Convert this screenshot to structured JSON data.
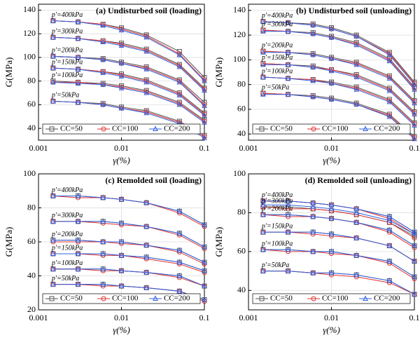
{
  "chart_data": [
    {
      "type": "line",
      "title": "(a) Undisturbed soil (loading)",
      "xlabel": "γ(%)",
      "ylabel": "G(MPa)",
      "xscale": "log",
      "xlim": [
        0.001,
        0.1
      ],
      "xticks": [
        0.001,
        0.01,
        0.1
      ],
      "ylim": [
        30,
        145
      ],
      "yticks": [
        40,
        60,
        80,
        100,
        120,
        140
      ],
      "grid": true,
      "x": [
        0.0015,
        0.003,
        0.006,
        0.01,
        0.02,
        0.05,
        0.1
      ],
      "groups": [
        "p'=400kPa",
        "p'=300kPa",
        "p'=200kPa",
        "p'=150kPa",
        "p'=100kPa",
        "p'=50kPa"
      ],
      "series": [
        {
          "name": "CC=50",
          "color": "#555555",
          "marker": "square",
          "values": [
            [
              131,
              130,
              128,
              125,
              119,
              105,
              83
            ],
            [
              117,
              116,
              114,
              112,
              107,
              94,
              74
            ],
            [
              101,
              100,
              99,
              96,
              92,
              81,
              62
            ],
            [
              91,
              90,
              88,
              86,
              81,
              70,
              53
            ],
            [
              80,
              79,
              78,
              76,
              72,
              62,
              47
            ],
            [
              63,
              62,
              61,
              58,
              55,
              46,
              34
            ]
          ]
        },
        {
          "name": "CC=100",
          "color": "#e03030",
          "marker": "circle",
          "values": [
            [
              131,
              130,
              128,
              124,
              118,
              103,
              81
            ],
            [
              117,
              116,
              114,
              111,
              106,
              93,
              73
            ],
            [
              101,
              100,
              98,
              95,
              91,
              80,
              60
            ],
            [
              91,
              90,
              88,
              85,
              80,
              69,
              52
            ],
            [
              79,
              79,
              77,
              75,
              71,
              61,
              46
            ],
            [
              63,
              62,
              60,
              57,
              54,
              45,
              33
            ]
          ]
        },
        {
          "name": "CC=200",
          "color": "#3060e0",
          "marker": "triangle",
          "values": [
            [
              131,
              130,
              127,
              123,
              117,
              102,
              80
            ],
            [
              117,
              116,
              113,
              110,
              105,
              92,
              72
            ],
            [
              101,
              100,
              98,
              95,
              90,
              79,
              59
            ],
            [
              91,
              90,
              87,
              84,
              79,
              68,
              51
            ],
            [
              79,
              78,
              77,
              74,
              70,
              60,
              45
            ],
            [
              63,
              62,
              60,
              57,
              53,
              44,
              32
            ]
          ]
        }
      ]
    },
    {
      "type": "line",
      "title": "(b) Undisturbed soil (unloading)",
      "xlabel": "γ(%)",
      "ylabel": "G(MPa)",
      "xscale": "log",
      "xlim": [
        0.001,
        0.1
      ],
      "xticks": [
        0.001,
        0.01,
        0.1
      ],
      "ylim": [
        35,
        145
      ],
      "yticks": [
        40,
        60,
        80,
        100,
        120,
        140
      ],
      "grid": true,
      "x": [
        0.0015,
        0.003,
        0.006,
        0.01,
        0.02,
        0.05,
        0.1
      ],
      "groups": [
        "p'=400kPa",
        "p'=300kPa",
        "p'=200kPa",
        "p'=150kPa",
        "p'=100kPa",
        "p'=50kPa"
      ],
      "series": [
        {
          "name": "CC=50",
          "color": "#555555",
          "marker": "square",
          "values": [
            [
              131,
              130,
              129,
              126,
              120,
              106,
              82
            ],
            [
              124,
              123,
              122,
              119,
              114,
              101,
              78
            ],
            [
              107,
              106,
              105,
              102,
              98,
              87,
              67
            ],
            [
              97,
              96,
              95,
              92,
              88,
              77,
              58
            ],
            [
              86,
              85,
              84,
              82,
              78,
              68,
              49
            ],
            [
              73,
              72,
              71,
              69,
              65,
              56,
              38
            ]
          ]
        },
        {
          "name": "CC=100",
          "color": "#e03030",
          "marker": "circle",
          "values": [
            [
              131,
              130,
              128,
              125,
              119,
              105,
              81
            ],
            [
              124,
              123,
              121,
              118,
              113,
              100,
              77
            ],
            [
              107,
              106,
              104,
              101,
              97,
              86,
              66
            ],
            [
              97,
              96,
              94,
              92,
              87,
              76,
              57
            ],
            [
              86,
              85,
              84,
              81,
              77,
              67,
              48
            ],
            [
              73,
              72,
              70,
              68,
              64,
              55,
              37
            ]
          ]
        },
        {
          "name": "CC=200",
          "color": "#3060e0",
          "marker": "triangle",
          "values": [
            [
              131,
              130,
              128,
              125,
              119,
              104,
              80
            ],
            [
              123,
              123,
              121,
              118,
              112,
              99,
              76
            ],
            [
              106,
              106,
              104,
              101,
              96,
              85,
              65
            ],
            [
              96,
              96,
              94,
              91,
              86,
              75,
              56
            ],
            [
              86,
              85,
              83,
              81,
              76,
              66,
              47
            ],
            [
              72,
              72,
              70,
              68,
              64,
              54,
              36
            ]
          ]
        }
      ]
    },
    {
      "type": "line",
      "title": "(c) Remolded soil (loading)",
      "xlabel": "γ(%)",
      "ylabel": "G(MPa)",
      "xscale": "log",
      "xlim": [
        0.001,
        0.1
      ],
      "xticks": [
        0.001,
        0.01,
        0.1
      ],
      "ylim": [
        20,
        100
      ],
      "yticks": [
        20,
        40,
        60,
        80,
        100
      ],
      "grid": true,
      "x": [
        0.0015,
        0.003,
        0.006,
        0.01,
        0.02,
        0.05,
        0.1
      ],
      "groups": [
        "p'=400kPa",
        "p'=300kPa",
        "p'=200kPa",
        "p'=150kPa",
        "p'=100kPa",
        "p'=50kPa"
      ],
      "series": [
        {
          "name": "CC=50",
          "color": "#555555",
          "marker": "square",
          "values": [
            [
              87,
              87,
              86,
              85,
              83,
              78,
              70
            ],
            [
              72,
              72,
              72,
              71,
              69,
              65,
              57
            ],
            [
              61,
              61,
              60,
              60,
              58,
              55,
              48
            ],
            [
              53,
              53,
              53,
              52,
              51,
              48,
              43
            ],
            [
              44,
              44,
              44,
              43,
              42,
              40,
              34
            ],
            [
              35,
              35,
              35,
              34,
              33,
              31,
              26
            ]
          ]
        },
        {
          "name": "CC=100",
          "color": "#e03030",
          "marker": "circle",
          "values": [
            [
              87,
              86,
              86,
              85,
              83,
              77,
              69
            ],
            [
              72,
              72,
              71,
              70,
              69,
              64,
              56
            ],
            [
              60,
              60,
              60,
              59,
              58,
              54,
              47
            ],
            [
              53,
              53,
              52,
              52,
              50,
              47,
              42
            ],
            [
              44,
              44,
              43,
              43,
              42,
              39,
              34
            ],
            [
              35,
              35,
              34,
              34,
              33,
              31,
              25
            ]
          ]
        },
        {
          "name": "CC=200",
          "color": "#3060e0",
          "marker": "triangle",
          "values": [
            [
              87,
              87,
              86,
              85,
              83,
              78,
              70
            ],
            [
              72,
              72,
              72,
              71,
              69,
              65,
              57
            ],
            [
              61,
              61,
              60,
              60,
              58,
              55,
              48
            ],
            [
              53,
              53,
              53,
              52,
              51,
              48,
              43
            ],
            [
              44,
              44,
              44,
              43,
              42,
              40,
              34
            ],
            [
              35,
              35,
              35,
              34,
              33,
              31,
              26
            ]
          ]
        }
      ]
    },
    {
      "type": "line",
      "title": "(d) Remolded soil (unloading)",
      "xlabel": "γ(%)",
      "ylabel": "G(MPa)",
      "xscale": "log",
      "xlim": [
        0.001,
        0.1
      ],
      "xticks": [
        0.001,
        0.01,
        0.1
      ],
      "ylim": [
        30,
        100
      ],
      "yticks": [
        40,
        60,
        80,
        100
      ],
      "grid": true,
      "x": [
        0.0015,
        0.003,
        0.006,
        0.01,
        0.02,
        0.05,
        0.1
      ],
      "groups": [
        "p'=400kPa",
        "p'=300kPa",
        "p'=200kPa",
        "p'=150kPa",
        "p'=100kPa",
        "p'=50kPa"
      ],
      "series": [
        {
          "name": "CC=50",
          "color": "#555555",
          "marker": "square",
          "values": [
            [
              86,
              86,
              85,
              84,
              82,
              78,
              70
            ],
            [
              83,
              83,
              82,
              81,
              79,
              75,
              68
            ],
            [
              79,
              79,
              78,
              77,
              75,
              71,
              63
            ],
            [
              70,
              70,
              70,
              69,
              67,
              63,
              55
            ],
            [
              61,
              61,
              60,
              60,
              58,
              55,
              47
            ],
            [
              50,
              50,
              49,
              49,
              48,
              45,
              38
            ]
          ]
        },
        {
          "name": "CC=100",
          "color": "#e03030",
          "marker": "circle",
          "values": [
            [
              86,
              86,
              85,
              84,
              82,
              77,
              69
            ],
            [
              83,
              82,
              82,
              81,
              79,
              75,
              67
            ],
            [
              79,
              78,
              78,
              77,
              75,
              70,
              62
            ],
            [
              70,
              70,
              69,
              68,
              67,
              63,
              55
            ],
            [
              61,
              60,
              60,
              59,
              58,
              54,
              46
            ],
            [
              50,
              50,
              49,
              48,
              47,
              44,
              38
            ]
          ]
        },
        {
          "name": "CC=200",
          "color": "#3060e0",
          "marker": "triangle",
          "values": [
            [
              86,
              86,
              85,
              84,
              82,
              78,
              70
            ],
            [
              84,
              84,
              83,
              82,
              80,
              76,
              69
            ],
            [
              79,
              79,
              78,
              77,
              75,
              71,
              63
            ],
            [
              70,
              70,
              70,
              69,
              67,
              63,
              55
            ],
            [
              61,
              61,
              60,
              60,
              58,
              55,
              47
            ],
            [
              50,
              50,
              49,
              49,
              48,
              45,
              38
            ]
          ]
        }
      ]
    }
  ]
}
